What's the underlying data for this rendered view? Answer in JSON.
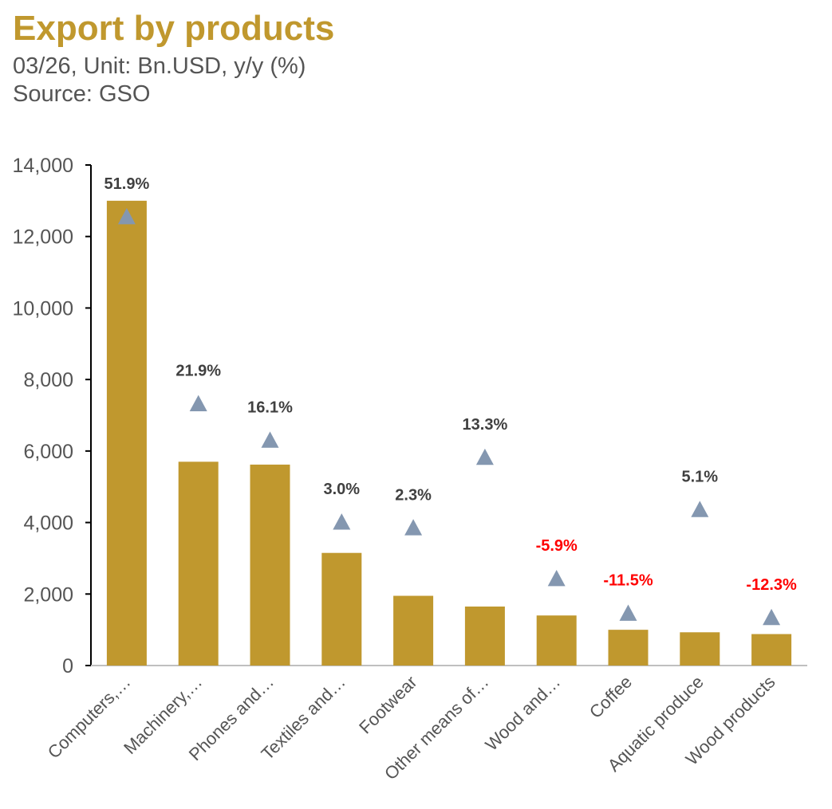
{
  "title": "Export by products",
  "subtitle": "03/26, Unit: Bn.USD, y/y (%)",
  "source": "Source: GSO",
  "colors": {
    "title": "#C0982E",
    "bar": "#C0982E",
    "marker": "#8497B0",
    "label_positive": "#404040",
    "label_negative": "#FF0000",
    "axis": "#555555"
  },
  "chart_data": {
    "type": "bar",
    "categories": [
      "Computers,…",
      "Machinery,…",
      "Phones and…",
      "Textiles and…",
      "Footwear",
      "Other means of…",
      "Wood and…",
      "Coffee",
      "Aquatic produce",
      "Wood products"
    ],
    "series": [
      {
        "type": "bar",
        "values": [
          13000,
          5700,
          5620,
          3150,
          1950,
          1650,
          1400,
          1000,
          930,
          880
        ]
      },
      {
        "type": "marker-triangle",
        "values": [
          12550,
          7320,
          6300,
          4010,
          3850,
          5820,
          2430,
          1460,
          4360,
          1340
        ]
      }
    ],
    "growth_labels": [
      "51.9%",
      "21.9%",
      "16.1%",
      "3.0%",
      "2.3%",
      "13.3%",
      "-5.9%",
      "-11.5%",
      "5.1%",
      "-12.3%"
    ],
    "y_ticks": [
      "0",
      "2,000",
      "4,000",
      "6,000",
      "8,000",
      "10,000",
      "12,000",
      "14,000"
    ],
    "ylim": [
      0,
      14000
    ],
    "xlabel": "",
    "ylabel": "",
    "grid": false,
    "legend": "none"
  }
}
